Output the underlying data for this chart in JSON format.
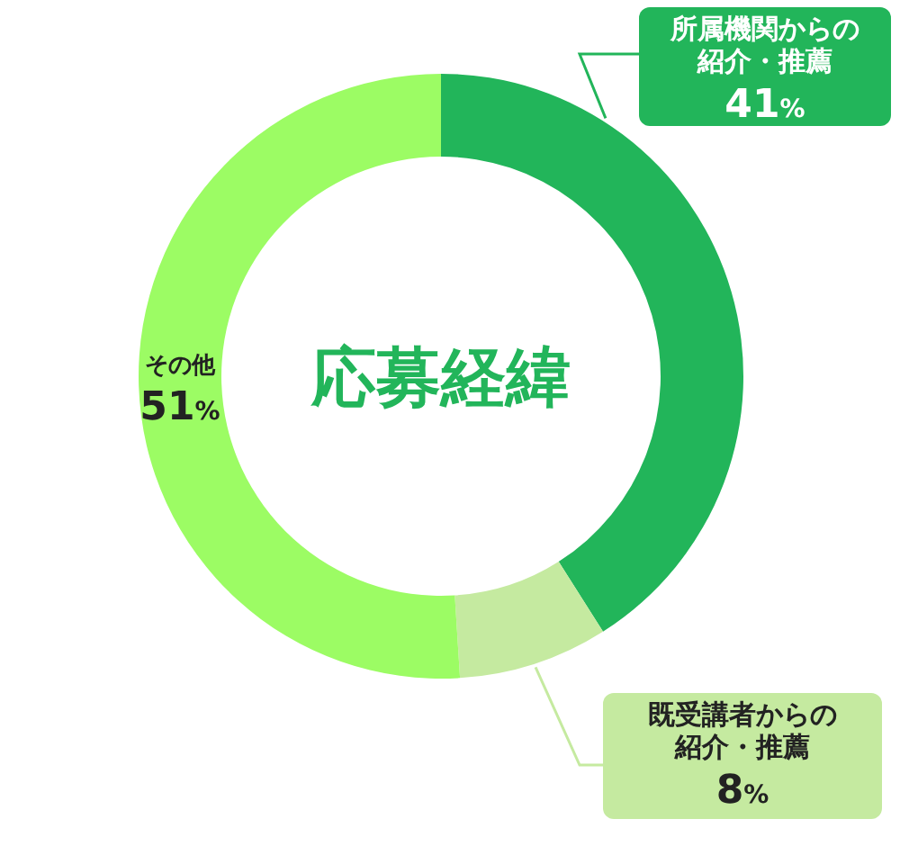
{
  "chart_data": {
    "type": "donut",
    "title": "応募経緯",
    "categories": [
      "所属機関からの紹介・推薦",
      "既受講者からの紹介・推薦",
      "その他"
    ],
    "values": [
      41,
      8,
      51
    ],
    "value_labels": [
      "41%",
      "8%",
      "51%"
    ],
    "colors": [
      "#22b55a",
      "#c5eaa0",
      "#9cfc64"
    ]
  }
}
